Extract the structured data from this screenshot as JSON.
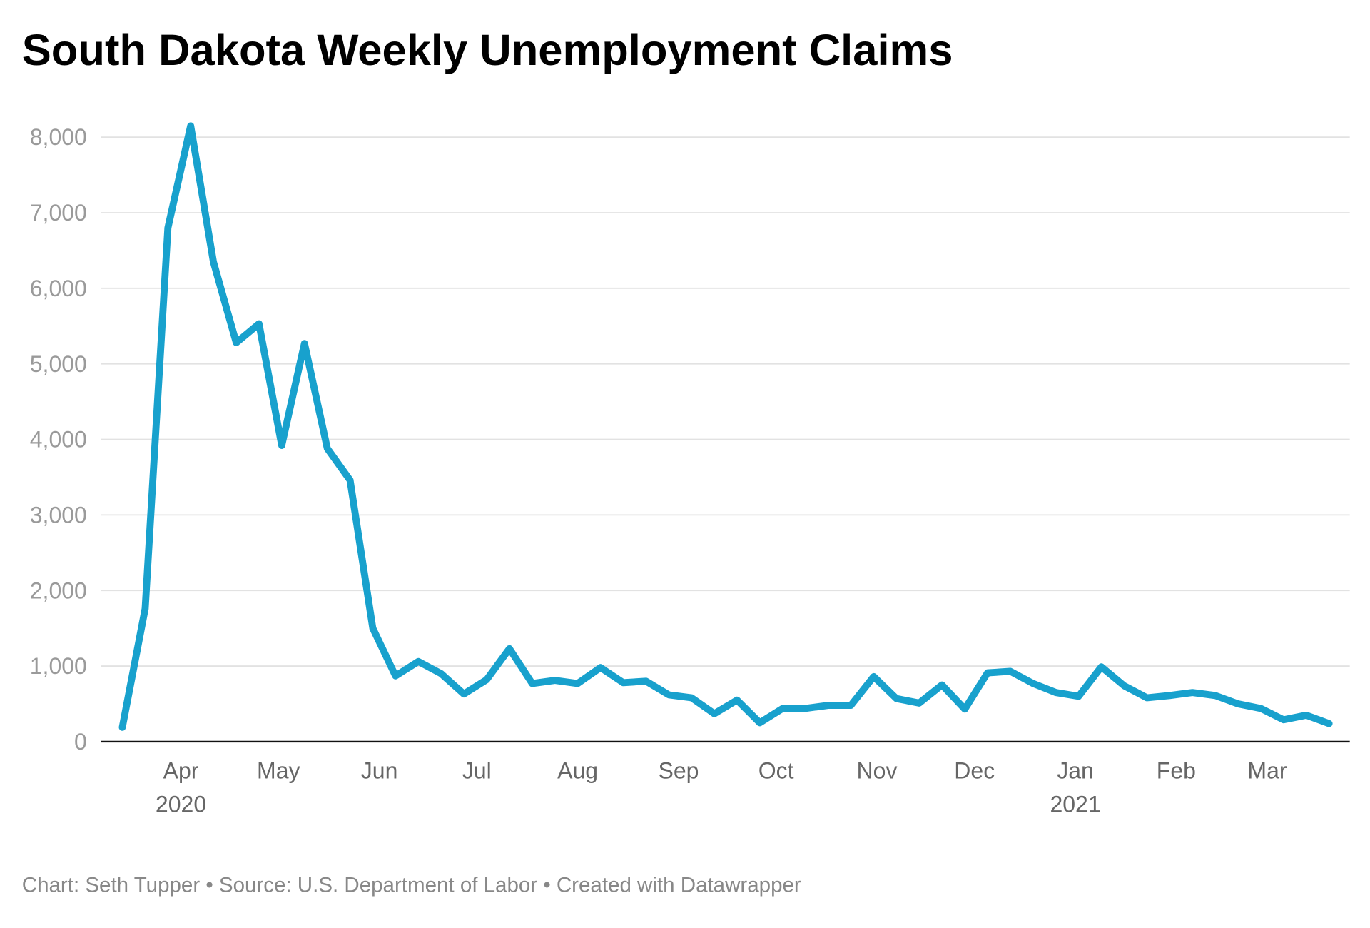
{
  "chart_data": {
    "type": "line",
    "title": "South Dakota Weekly Unemployment Claims",
    "footer": "Chart: Seth Tupper • Source: U.S. Department of Labor • Created with Datawrapper",
    "xlabel": "",
    "ylabel": "",
    "ylim": [
      0,
      8000
    ],
    "yticks": [
      0,
      1000,
      2000,
      3000,
      4000,
      5000,
      6000,
      7000,
      8000
    ],
    "ytick_labels": [
      "0",
      "1,000",
      "2,000",
      "3,000",
      "4,000",
      "5,000",
      "6,000",
      "7,000",
      "8,000"
    ],
    "xticks": [
      {
        "date": "2020-04-01",
        "label": "Apr",
        "year": "2020"
      },
      {
        "date": "2020-05-01",
        "label": "May"
      },
      {
        "date": "2020-06-01",
        "label": "Jun"
      },
      {
        "date": "2020-07-01",
        "label": "Jul"
      },
      {
        "date": "2020-08-01",
        "label": "Aug"
      },
      {
        "date": "2020-09-01",
        "label": "Sep"
      },
      {
        "date": "2020-10-01",
        "label": "Oct"
      },
      {
        "date": "2020-11-01",
        "label": "Nov"
      },
      {
        "date": "2020-12-01",
        "label": "Dec"
      },
      {
        "date": "2021-01-01",
        "label": "Jan",
        "year": "2021"
      },
      {
        "date": "2021-02-01",
        "label": "Feb"
      },
      {
        "date": "2021-03-01",
        "label": "Mar"
      }
    ],
    "grid": true,
    "line_color": "#18a1cd",
    "series": [
      {
        "x_start": "2020-03-14",
        "x_interval": "weekly",
        "values": [
          190,
          1760,
          6800,
          8150,
          6350,
          5280,
          5530,
          3920,
          5270,
          3880,
          3460,
          1500,
          870,
          1060,
          900,
          630,
          820,
          1230,
          770,
          810,
          770,
          980,
          780,
          800,
          620,
          580,
          370,
          550,
          250,
          440,
          440,
          480,
          480,
          860,
          570,
          510,
          750,
          430,
          910,
          930,
          770,
          650,
          600,
          990,
          740,
          580,
          610,
          650,
          610,
          500,
          440,
          290,
          350,
          240
        ]
      }
    ]
  }
}
